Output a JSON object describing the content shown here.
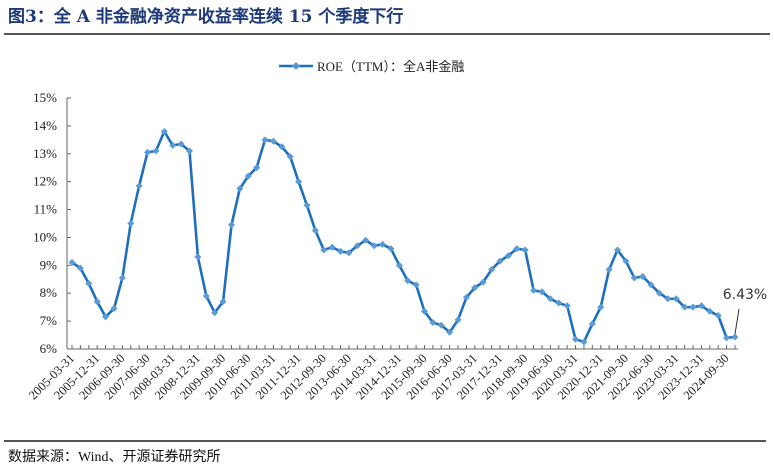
{
  "header": {
    "title": "图3：全 A 非金融净资产收益率连续 15 个季度下行"
  },
  "footer": {
    "source": "数据来源：Wind、开源证券研究所"
  },
  "colors": {
    "title": "#1f3a78",
    "line": "#1f6fbf",
    "marker": "#5b9bd5",
    "axis": "#666666"
  },
  "chart_data": {
    "type": "line",
    "title": "",
    "xlabel": "",
    "ylabel": "",
    "ylim": [
      6,
      15
    ],
    "yticks": [
      "6%",
      "7%",
      "8%",
      "9%",
      "10%",
      "11%",
      "12%",
      "13%",
      "14%",
      "15%"
    ],
    "grid": false,
    "legend_position": "top-center",
    "x_tick_labels": [
      "2005-03-31",
      "2005-12-31",
      "2006-09-30",
      "2007-06-30",
      "2008-03-31",
      "2008-12-31",
      "2009-09-30",
      "2010-06-30",
      "2011-03-31",
      "2011-12-31",
      "2012-09-30",
      "2013-06-30",
      "2014-03-31",
      "2014-12-31",
      "2015-09-30",
      "2016-06-30",
      "2017-03-31",
      "2017-12-31",
      "2018-09-30",
      "2019-06-30",
      "2020-03-31",
      "2020-12-31",
      "2021-09-30",
      "2022-06-30",
      "2023-03-31",
      "2023-12-31",
      "2024-09-30"
    ],
    "x": [
      "2005-03-31",
      "2005-06-30",
      "2005-09-30",
      "2005-12-31",
      "2006-03-31",
      "2006-06-30",
      "2006-09-30",
      "2006-12-31",
      "2007-03-31",
      "2007-06-30",
      "2007-09-30",
      "2007-12-31",
      "2008-03-31",
      "2008-06-30",
      "2008-09-30",
      "2008-12-31",
      "2009-03-31",
      "2009-06-30",
      "2009-09-30",
      "2009-12-31",
      "2010-03-31",
      "2010-06-30",
      "2010-09-30",
      "2010-12-31",
      "2011-03-31",
      "2011-06-30",
      "2011-09-30",
      "2011-12-31",
      "2012-03-31",
      "2012-06-30",
      "2012-09-30",
      "2012-12-31",
      "2013-03-31",
      "2013-06-30",
      "2013-09-30",
      "2013-12-31",
      "2014-03-31",
      "2014-06-30",
      "2014-09-30",
      "2014-12-31",
      "2015-03-31",
      "2015-06-30",
      "2015-09-30",
      "2015-12-31",
      "2016-03-31",
      "2016-06-30",
      "2016-09-30",
      "2016-12-31",
      "2017-03-31",
      "2017-06-30",
      "2017-09-30",
      "2017-12-31",
      "2018-03-31",
      "2018-06-30",
      "2018-09-30",
      "2018-12-31",
      "2019-03-31",
      "2019-06-30",
      "2019-09-30",
      "2019-12-31",
      "2020-03-31",
      "2020-06-30",
      "2020-09-30",
      "2020-12-31",
      "2021-03-31",
      "2021-06-30",
      "2021-09-30",
      "2021-12-31",
      "2022-03-31",
      "2022-06-30",
      "2022-09-30",
      "2022-12-31",
      "2023-03-31",
      "2023-06-30",
      "2023-09-30",
      "2023-12-31",
      "2024-03-31",
      "2024-06-30",
      "2024-09-30",
      "2024-12-31"
    ],
    "series": [
      {
        "name": "ROE（TTM）：全A非金融",
        "unit": "%",
        "values": [
          9.1,
          8.9,
          8.35,
          7.7,
          7.15,
          7.45,
          8.55,
          10.5,
          11.85,
          13.05,
          13.1,
          13.8,
          13.3,
          13.35,
          13.1,
          9.3,
          7.9,
          7.3,
          7.7,
          10.45,
          11.75,
          12.2,
          12.5,
          13.5,
          13.45,
          13.25,
          12.9,
          12.0,
          11.15,
          10.25,
          9.55,
          9.65,
          9.5,
          9.45,
          9.7,
          9.9,
          9.7,
          9.75,
          9.6,
          9.0,
          8.45,
          8.3,
          7.35,
          6.95,
          6.85,
          6.6,
          7.05,
          7.85,
          8.2,
          8.4,
          8.85,
          9.15,
          9.35,
          9.6,
          9.55,
          8.1,
          8.05,
          7.8,
          7.65,
          7.55,
          6.35,
          6.25,
          6.9,
          7.5,
          8.85,
          9.55,
          9.15,
          8.55,
          8.6,
          8.3,
          8.0,
          7.8,
          7.8,
          7.5,
          7.5,
          7.55,
          7.35,
          7.2,
          6.4,
          6.43
        ]
      }
    ],
    "annotations": [
      {
        "text": "6.43%",
        "x": "2024-12-31",
        "y": 6.43
      }
    ]
  }
}
